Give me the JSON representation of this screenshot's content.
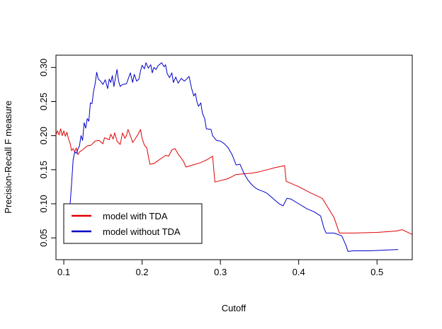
{
  "chart_data": {
    "type": "line",
    "title": "",
    "xlabel": "Cutoff",
    "ylabel": "Precision-Recall F measure",
    "xlim": [
      0.09,
      0.545
    ],
    "ylim": [
      0.018,
      0.318
    ],
    "x_ticks": [
      0.1,
      0.2,
      0.3,
      0.4,
      0.5
    ],
    "x_tick_labels": [
      "0.1",
      "0.2",
      "0.3",
      "0.4",
      "0.5"
    ],
    "y_ticks": [
      0.05,
      0.1,
      0.15,
      0.2,
      0.25,
      0.3
    ],
    "y_tick_labels": [
      "0.05",
      "0.10",
      "0.15",
      "0.20",
      "0.25",
      "0.30"
    ],
    "grid": false,
    "legend_position": "bottom-left",
    "series": [
      {
        "name": "model with TDA",
        "color": "#e00000",
        "points": [
          [
            0.09,
            0.201
          ],
          [
            0.092,
            0.207
          ],
          [
            0.094,
            0.201
          ],
          [
            0.096,
            0.21
          ],
          [
            0.098,
            0.2
          ],
          [
            0.1,
            0.207
          ],
          [
            0.102,
            0.199
          ],
          [
            0.104,
            0.205
          ],
          [
            0.106,
            0.195
          ],
          [
            0.108,
            0.189
          ],
          [
            0.11,
            0.178
          ],
          [
            0.112,
            0.181
          ],
          [
            0.114,
            0.176
          ],
          [
            0.116,
            0.182
          ],
          [
            0.118,
            0.172
          ],
          [
            0.12,
            0.176
          ],
          [
            0.125,
            0.18
          ],
          [
            0.13,
            0.185
          ],
          [
            0.135,
            0.186
          ],
          [
            0.14,
            0.192
          ],
          [
            0.145,
            0.193
          ],
          [
            0.15,
            0.188
          ],
          [
            0.152,
            0.197
          ],
          [
            0.158,
            0.194
          ],
          [
            0.16,
            0.202
          ],
          [
            0.163,
            0.195
          ],
          [
            0.165,
            0.204
          ],
          [
            0.168,
            0.192
          ],
          [
            0.172,
            0.187
          ],
          [
            0.175,
            0.204
          ],
          [
            0.178,
            0.196
          ],
          [
            0.18,
            0.2
          ],
          [
            0.182,
            0.209
          ],
          [
            0.184,
            0.203
          ],
          [
            0.186,
            0.197
          ],
          [
            0.188,
            0.19
          ],
          [
            0.191,
            0.195
          ],
          [
            0.195,
            0.202
          ],
          [
            0.198,
            0.209
          ],
          [
            0.2,
            0.196
          ],
          [
            0.203,
            0.186
          ],
          [
            0.206,
            0.182
          ],
          [
            0.208,
            0.17
          ],
          [
            0.21,
            0.158
          ],
          [
            0.215,
            0.159
          ],
          [
            0.22,
            0.163
          ],
          [
            0.225,
            0.167
          ],
          [
            0.23,
            0.171
          ],
          [
            0.234,
            0.17
          ],
          [
            0.238,
            0.179
          ],
          [
            0.242,
            0.181
          ],
          [
            0.246,
            0.173
          ],
          [
            0.25,
            0.167
          ],
          [
            0.253,
            0.162
          ],
          [
            0.256,
            0.154
          ],
          [
            0.262,
            0.156
          ],
          [
            0.268,
            0.158
          ],
          [
            0.274,
            0.16
          ],
          [
            0.28,
            0.163
          ],
          [
            0.285,
            0.166
          ],
          [
            0.29,
            0.17
          ],
          [
            0.293,
            0.132
          ],
          [
            0.3,
            0.134
          ],
          [
            0.31,
            0.137
          ],
          [
            0.32,
            0.143
          ],
          [
            0.33,
            0.144
          ],
          [
            0.34,
            0.145
          ],
          [
            0.35,
            0.147
          ],
          [
            0.36,
            0.15
          ],
          [
            0.37,
            0.153
          ],
          [
            0.382,
            0.156
          ],
          [
            0.384,
            0.133
          ],
          [
            0.4,
            0.125
          ],
          [
            0.415,
            0.116
          ],
          [
            0.43,
            0.108
          ],
          [
            0.445,
            0.08
          ],
          [
            0.452,
            0.057
          ],
          [
            0.47,
            0.057
          ],
          [
            0.5,
            0.058
          ],
          [
            0.525,
            0.06
          ],
          [
            0.532,
            0.062
          ],
          [
            0.545,
            0.055
          ]
        ]
      },
      {
        "name": "model without TDA",
        "color": "#0000c8",
        "points": [
          [
            0.108,
            0.098
          ],
          [
            0.11,
            0.13
          ],
          [
            0.112,
            0.165
          ],
          [
            0.114,
            0.176
          ],
          [
            0.116,
            0.174
          ],
          [
            0.118,
            0.18
          ],
          [
            0.12,
            0.185
          ],
          [
            0.122,
            0.2
          ],
          [
            0.124,
            0.193
          ],
          [
            0.126,
            0.219
          ],
          [
            0.128,
            0.211
          ],
          [
            0.13,
            0.225
          ],
          [
            0.132,
            0.221
          ],
          [
            0.134,
            0.248
          ],
          [
            0.136,
            0.247
          ],
          [
            0.138,
            0.265
          ],
          [
            0.14,
            0.276
          ],
          [
            0.142,
            0.293
          ],
          [
            0.144,
            0.283
          ],
          [
            0.147,
            0.28
          ],
          [
            0.15,
            0.275
          ],
          [
            0.153,
            0.282
          ],
          [
            0.156,
            0.269
          ],
          [
            0.158,
            0.283
          ],
          [
            0.16,
            0.278
          ],
          [
            0.162,
            0.288
          ],
          [
            0.164,
            0.272
          ],
          [
            0.166,
            0.285
          ],
          [
            0.168,
            0.297
          ],
          [
            0.17,
            0.28
          ],
          [
            0.172,
            0.272
          ],
          [
            0.175,
            0.275
          ],
          [
            0.18,
            0.276
          ],
          [
            0.185,
            0.292
          ],
          [
            0.188,
            0.278
          ],
          [
            0.19,
            0.29
          ],
          [
            0.193,
            0.28
          ],
          [
            0.196,
            0.283
          ],
          [
            0.198,
            0.295
          ],
          [
            0.2,
            0.303
          ],
          [
            0.203,
            0.298
          ],
          [
            0.205,
            0.307
          ],
          [
            0.208,
            0.299
          ],
          [
            0.211,
            0.304
          ],
          [
            0.213,
            0.292
          ],
          [
            0.215,
            0.3
          ],
          [
            0.218,
            0.297
          ],
          [
            0.22,
            0.302
          ],
          [
            0.223,
            0.305
          ],
          [
            0.225,
            0.307
          ],
          [
            0.228,
            0.301
          ],
          [
            0.23,
            0.304
          ],
          [
            0.232,
            0.291
          ],
          [
            0.235,
            0.285
          ],
          [
            0.238,
            0.292
          ],
          [
            0.24,
            0.278
          ],
          [
            0.243,
            0.286
          ],
          [
            0.246,
            0.277
          ],
          [
            0.25,
            0.284
          ],
          [
            0.254,
            0.28
          ],
          [
            0.257,
            0.283
          ],
          [
            0.26,
            0.287
          ],
          [
            0.263,
            0.27
          ],
          [
            0.266,
            0.258
          ],
          [
            0.268,
            0.262
          ],
          [
            0.27,
            0.25
          ],
          [
            0.272,
            0.243
          ],
          [
            0.275,
            0.248
          ],
          [
            0.277,
            0.233
          ],
          [
            0.28,
            0.225
          ],
          [
            0.282,
            0.21
          ],
          [
            0.288,
            0.209
          ],
          [
            0.29,
            0.2
          ],
          [
            0.295,
            0.193
          ],
          [
            0.3,
            0.192
          ],
          [
            0.305,
            0.188
          ],
          [
            0.31,
            0.182
          ],
          [
            0.315,
            0.172
          ],
          [
            0.32,
            0.157
          ],
          [
            0.325,
            0.158
          ],
          [
            0.33,
            0.145
          ],
          [
            0.335,
            0.135
          ],
          [
            0.34,
            0.128
          ],
          [
            0.345,
            0.123
          ],
          [
            0.35,
            0.12
          ],
          [
            0.355,
            0.118
          ],
          [
            0.36,
            0.115
          ],
          [
            0.365,
            0.11
          ],
          [
            0.37,
            0.105
          ],
          [
            0.375,
            0.1
          ],
          [
            0.38,
            0.097
          ],
          [
            0.385,
            0.108
          ],
          [
            0.39,
            0.107
          ],
          [
            0.4,
            0.1
          ],
          [
            0.41,
            0.093
          ],
          [
            0.42,
            0.088
          ],
          [
            0.428,
            0.082
          ],
          [
            0.432,
            0.065
          ],
          [
            0.435,
            0.057
          ],
          [
            0.445,
            0.057
          ],
          [
            0.455,
            0.053
          ],
          [
            0.46,
            0.04
          ],
          [
            0.463,
            0.03
          ],
          [
            0.47,
            0.031
          ],
          [
            0.49,
            0.031
          ],
          [
            0.51,
            0.032
          ],
          [
            0.527,
            0.033
          ]
        ]
      }
    ]
  }
}
